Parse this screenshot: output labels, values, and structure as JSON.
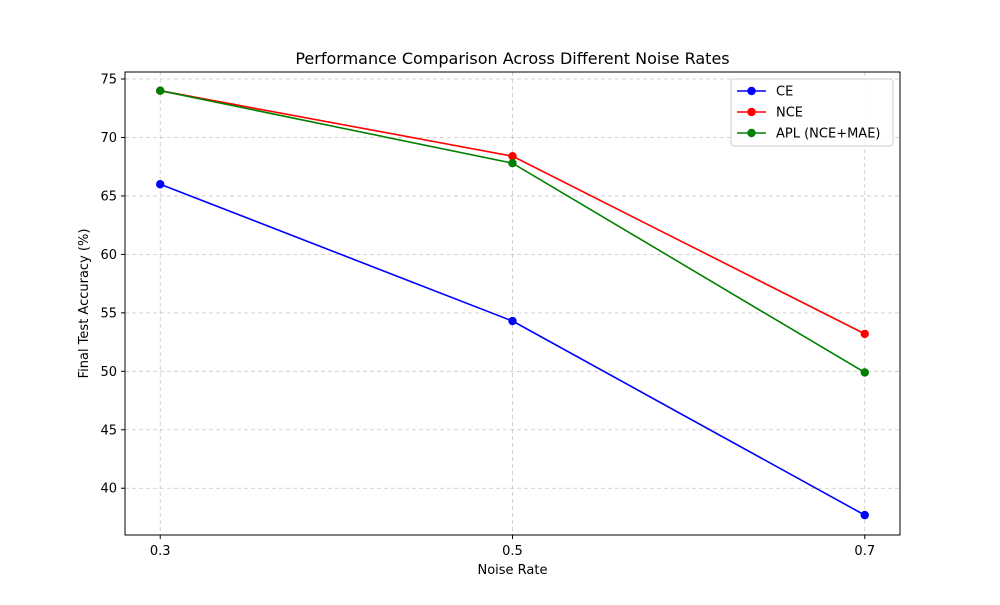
{
  "chart_data": {
    "type": "line",
    "title": "Performance Comparison Across Different Noise Rates",
    "xlabel": "Noise Rate",
    "ylabel": "Final Test Accuracy (%)",
    "x": [
      0.3,
      0.5,
      0.7
    ],
    "x_tick_labels": [
      "0.3",
      "0.5",
      "0.7"
    ],
    "xlim": [
      0.28,
      0.72
    ],
    "ylim": [
      36.0,
      75.6
    ],
    "y_ticks": [
      40,
      45,
      50,
      55,
      60,
      65,
      70,
      75
    ],
    "grid": true,
    "legend_position": "top-right",
    "series": [
      {
        "name": "CE",
        "color": "#0000ff",
        "values": [
          66.0,
          54.3,
          37.7
        ]
      },
      {
        "name": "NCE",
        "color": "#ff0000",
        "values": [
          74.0,
          68.4,
          53.2
        ]
      },
      {
        "name": "APL (NCE+MAE)",
        "color": "#008000",
        "values": [
          74.0,
          67.8,
          49.9
        ]
      }
    ]
  }
}
